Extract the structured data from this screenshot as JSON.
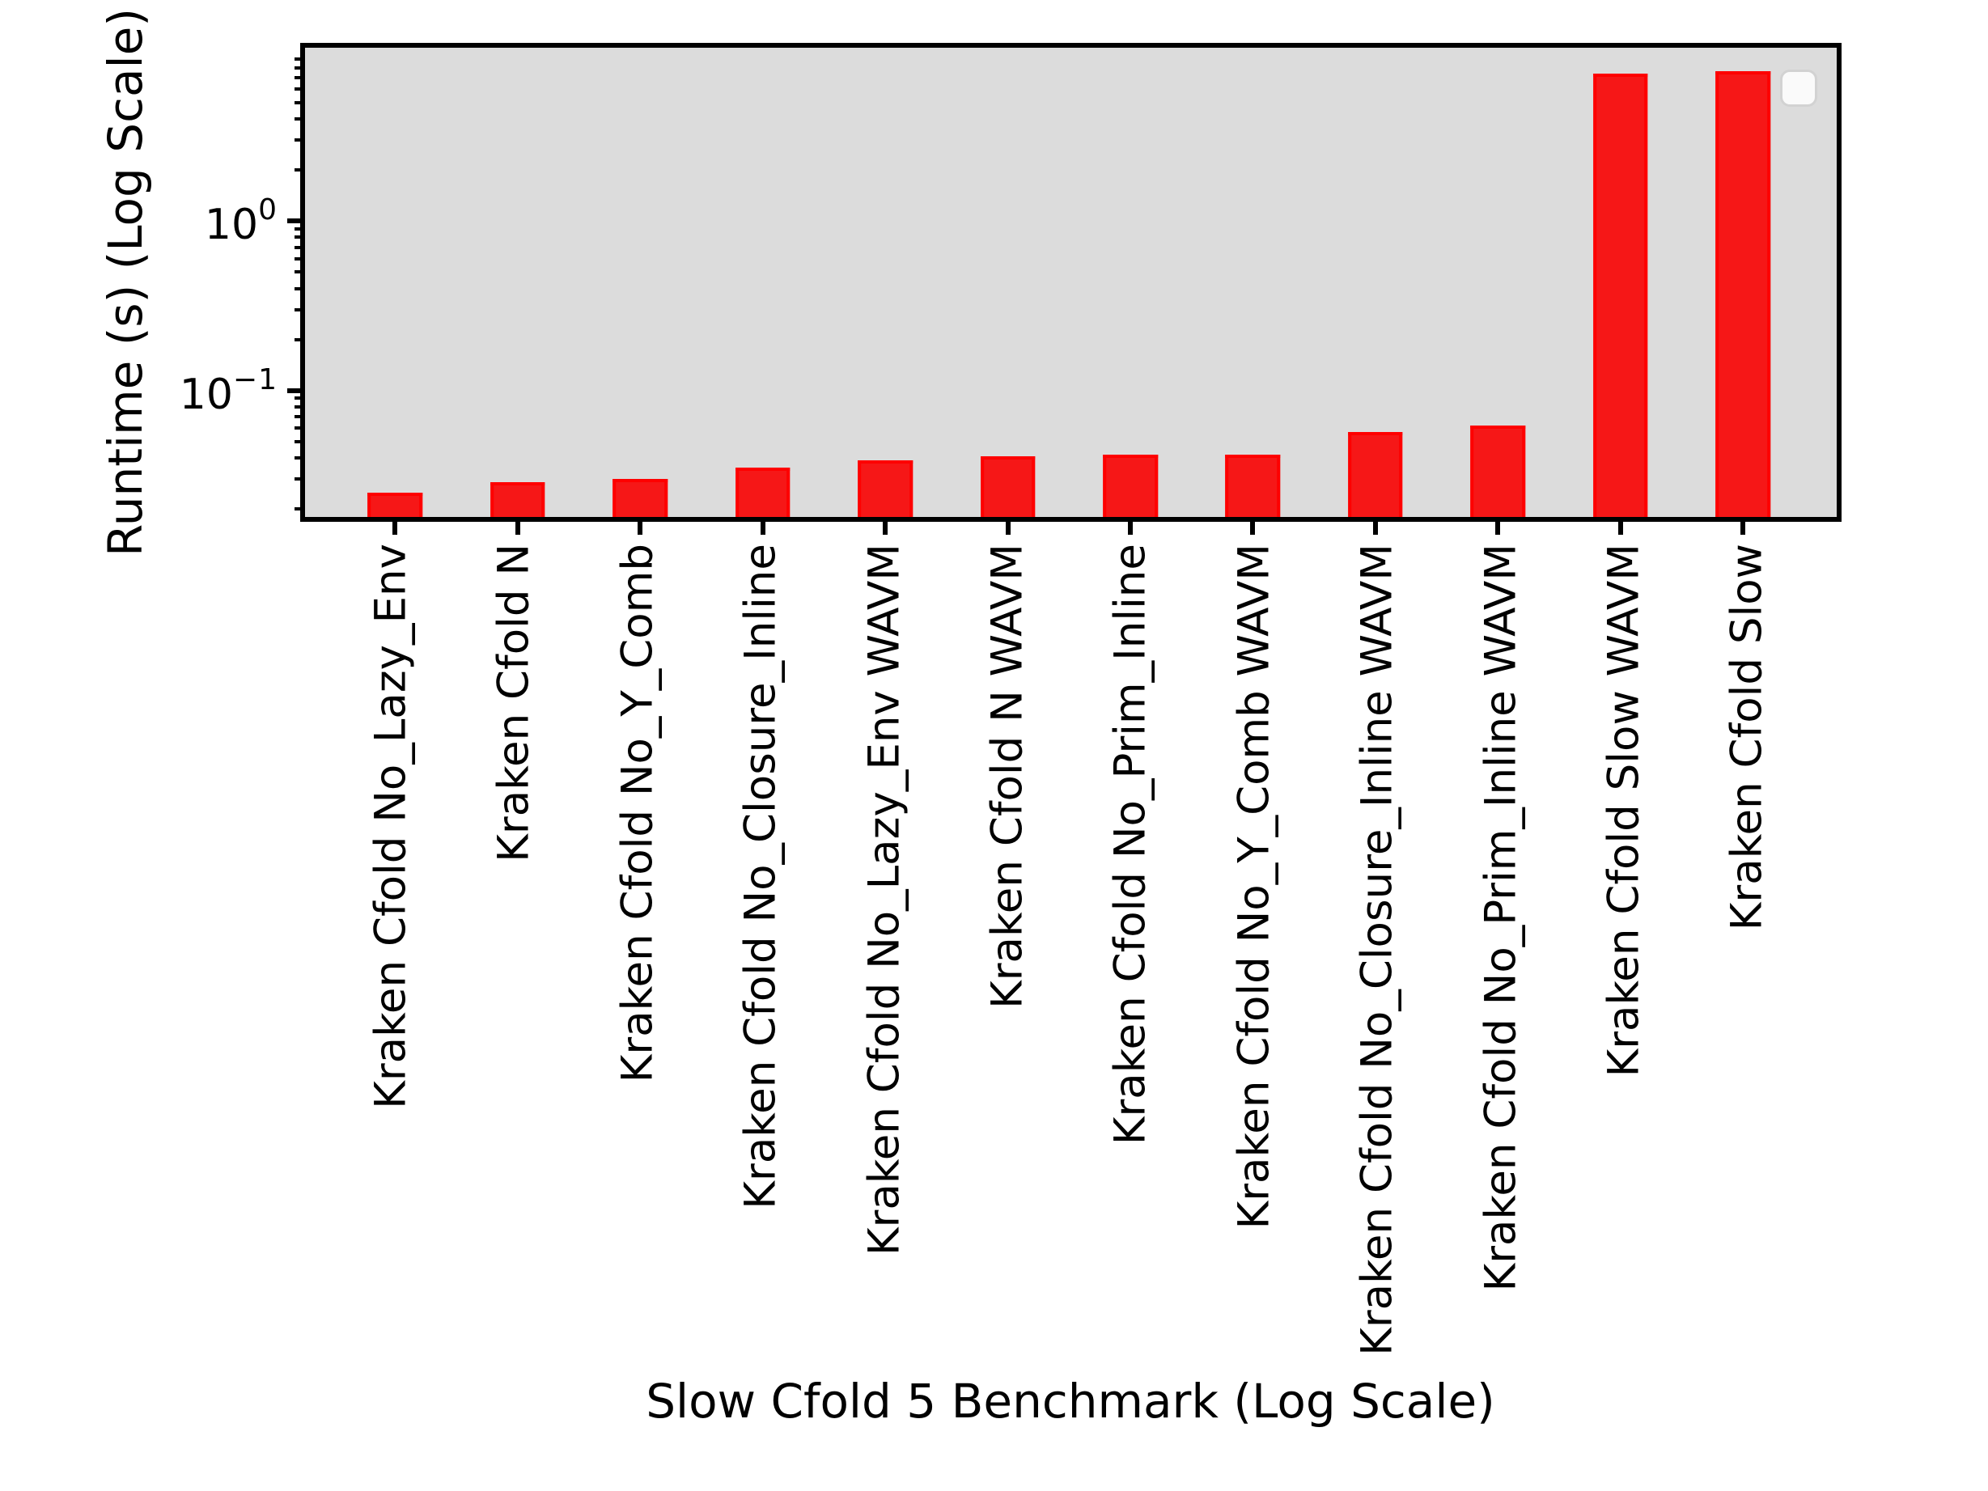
{
  "chart_data": {
    "type": "bar",
    "title": "",
    "xlabel": "Slow Cfold 5 Benchmark (Log Scale)",
    "ylabel": "Runtime (s) (Log Scale)",
    "yscale": "log",
    "ylim": [
      0.018,
      10.5
    ],
    "grid": false,
    "legend": {
      "visible": true,
      "entries": [],
      "position": "upper-right"
    },
    "plot_bg_color": "#dcdcdc",
    "bar_fill_color": "#f61717",
    "bar_edge_color": "#fe0000",
    "categories": [
      "Kraken Cfold No_Lazy_Env",
      "Kraken Cfold N",
      "Kraken Cfold No_Y_Comb",
      "Kraken Cfold No_Closure_Inline",
      "Kraken Cfold No_Lazy_Env WAVM",
      "Kraken Cfold N WAVM",
      "Kraken Cfold No_Prim_Inline",
      "Kraken Cfold No_Y_Comb WAVM",
      "Kraken Cfold No_Closure_Inline WAVM",
      "Kraken Cfold No_Prim_Inline WAVM",
      "Kraken Cfold Slow WAVM",
      "Kraken Cfold Slow"
    ],
    "values": [
      0.025,
      0.029,
      0.03,
      0.035,
      0.039,
      0.041,
      0.042,
      0.042,
      0.057,
      0.062,
      7.4,
      7.6
    ],
    "y_major_ticks": [
      {
        "value": 1,
        "base": "10",
        "exponent": "0"
      },
      {
        "value": 0.1,
        "base": "10",
        "exponent": "−1"
      }
    ]
  }
}
